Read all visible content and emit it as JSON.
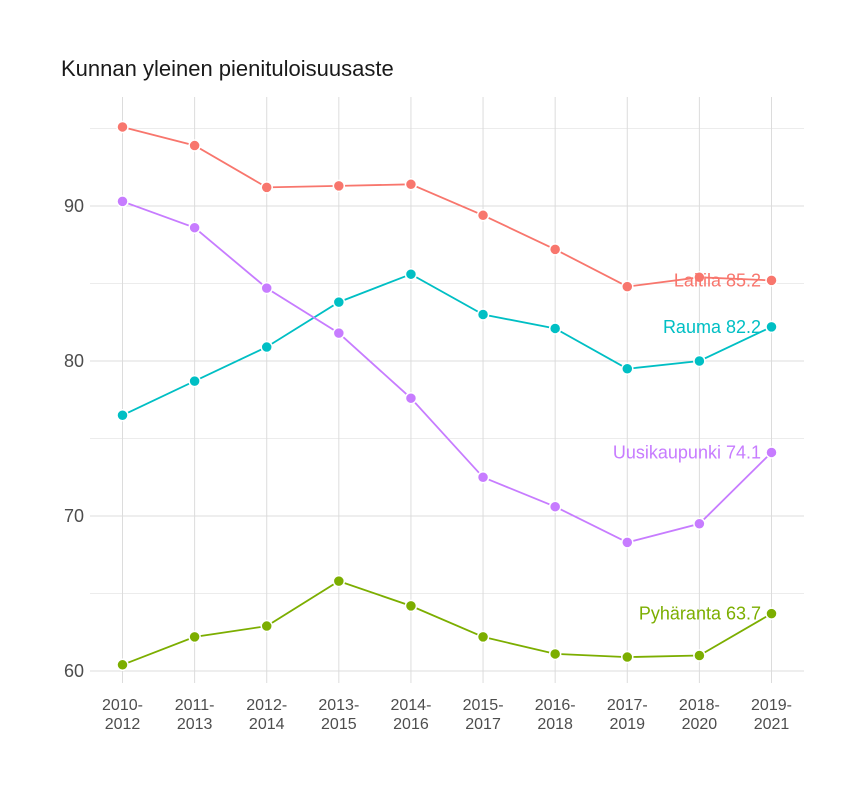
{
  "chart_data": {
    "type": "line",
    "title": "Kunnan yleinen pienituloisuusaste",
    "xlabel": "",
    "ylabel": "",
    "categories": [
      "2010-2012",
      "2011-2013",
      "2012-2014",
      "2013-2015",
      "2014-2016",
      "2015-2017",
      "2016-2018",
      "2017-2019",
      "2018-2020",
      "2019-2021"
    ],
    "category_lines": [
      [
        "2010-",
        "2012"
      ],
      [
        "2011-",
        "2013"
      ],
      [
        "2012-",
        "2014"
      ],
      [
        "2013-",
        "2015"
      ],
      [
        "2014-",
        "2016"
      ],
      [
        "2015-",
        "2017"
      ],
      [
        "2016-",
        "2018"
      ],
      [
        "2017-",
        "2019"
      ],
      [
        "2018-",
        "2020"
      ],
      [
        "2019-",
        "2021"
      ]
    ],
    "ylim": [
      59,
      96
    ],
    "yticks": [
      60,
      70,
      80,
      90
    ],
    "grid": true,
    "legend": "none",
    "series": [
      {
        "name": "Laitila",
        "label": "Laitila 85.2",
        "color": "#F8766D",
        "values": [
          95.1,
          93.9,
          91.2,
          91.3,
          91.4,
          89.4,
          87.2,
          84.8,
          85.4,
          85.2
        ]
      },
      {
        "name": "Rauma",
        "label": "Rauma 82.2",
        "color": "#00BFC4",
        "values": [
          76.5,
          78.7,
          80.9,
          83.8,
          85.6,
          83.0,
          82.1,
          79.5,
          80.0,
          82.2
        ]
      },
      {
        "name": "Uusikaupunki",
        "label": "Uusikaupunki 74.1",
        "color": "#C77CFF",
        "values": [
          90.3,
          88.6,
          84.7,
          81.8,
          77.6,
          72.5,
          70.6,
          68.3,
          69.5,
          74.1
        ]
      },
      {
        "name": "Pyhäranta",
        "label": "Pyhäranta 63.7",
        "color": "#7CAE00",
        "values": [
          60.4,
          62.2,
          62.9,
          65.8,
          64.2,
          62.2,
          61.1,
          60.9,
          61.0,
          63.7
        ]
      }
    ]
  }
}
